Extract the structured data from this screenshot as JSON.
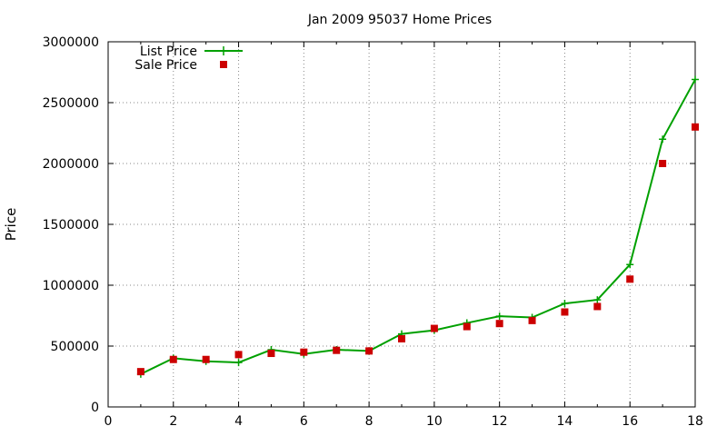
{
  "chart_data": {
    "type": "line",
    "title": "Jan 2009 95037 Home Prices",
    "xlabel": "",
    "ylabel": "Price",
    "xlim": [
      0,
      18
    ],
    "ylim": [
      0,
      3000000
    ],
    "x_ticks": [
      0,
      2,
      4,
      6,
      8,
      10,
      12,
      14,
      16,
      18
    ],
    "y_ticks": [
      0,
      500000,
      1000000,
      1500000,
      2000000,
      2500000,
      3000000
    ],
    "grid": true,
    "legend_position": "top-left",
    "x": [
      1,
      2,
      3,
      4,
      5,
      6,
      7,
      8,
      9,
      10,
      11,
      12,
      13,
      14,
      15,
      16,
      17,
      18
    ],
    "series": [
      {
        "name": "List Price",
        "style": "line-with-plus-markers",
        "color": "#00a000",
        "values": [
          270000,
          400000,
          375000,
          365000,
          470000,
          435000,
          470000,
          460000,
          600000,
          630000,
          690000,
          745000,
          735000,
          850000,
          880000,
          1170000,
          2200000,
          2690000
        ]
      },
      {
        "name": "Sale Price",
        "style": "square-markers",
        "color": "#cc0000",
        "values": [
          290000,
          390000,
          390000,
          430000,
          440000,
          450000,
          465000,
          460000,
          560000,
          645000,
          660000,
          685000,
          710000,
          780000,
          825000,
          1050000,
          2000000,
          2300000
        ]
      }
    ]
  }
}
